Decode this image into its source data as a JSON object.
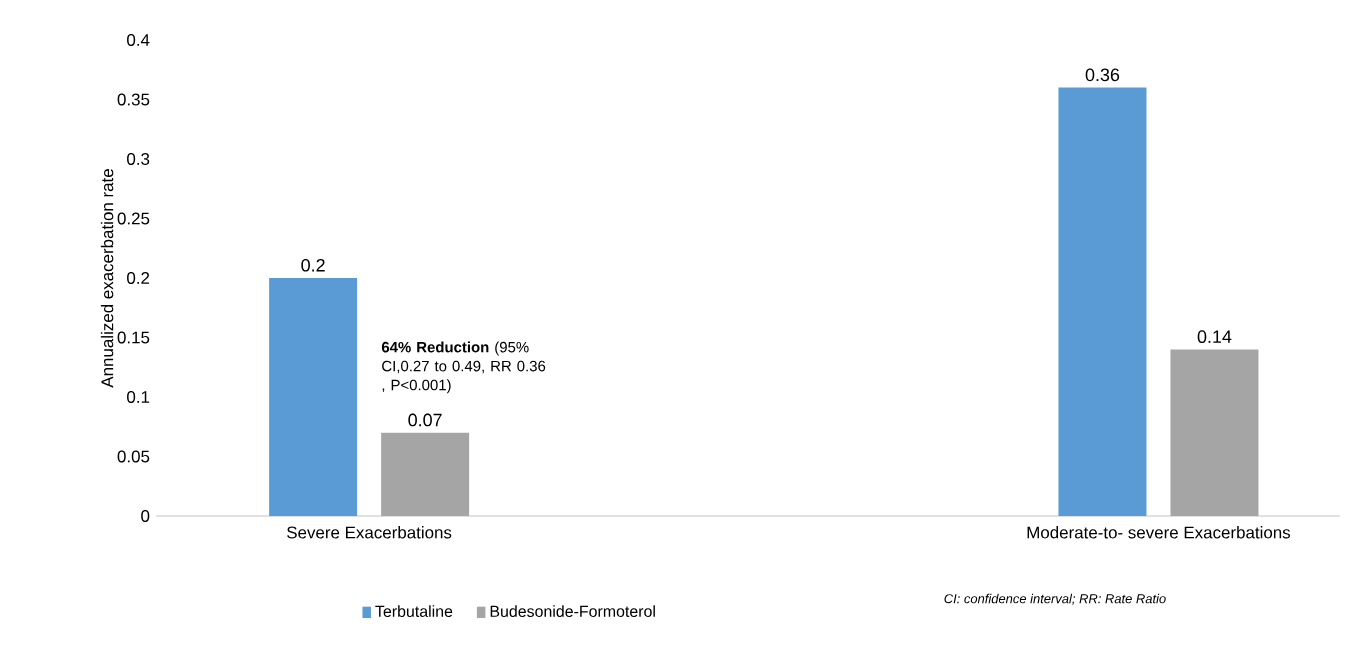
{
  "chart_data": {
    "type": "bar",
    "ylabel": "Annualized exacerbation rate",
    "categories": [
      "Severe Exacerbations",
      "Moderate-to- severe Exacerbations"
    ],
    "series": [
      {
        "name": "Terbutaline",
        "color": "#5b9bd5",
        "values": [
          0.2,
          0.36
        ]
      },
      {
        "name": "Budesonide-Formoterol",
        "color": "#a5a5a5",
        "values": [
          0.07,
          0.14
        ]
      }
    ],
    "ylim": [
      0,
      0.4
    ],
    "yticks": [
      0,
      0.05,
      0.1,
      0.15,
      0.2,
      0.25,
      0.3,
      0.35,
      0.4
    ],
    "data_labels": true,
    "grid": false,
    "legend": "bottom",
    "annotations": [
      "**64% Reduction** (95% CI,0.27 to 0.49, RR 0.36 , P<0.001)",
      "CI: confidence interval; RR: Rate Ratio"
    ]
  }
}
